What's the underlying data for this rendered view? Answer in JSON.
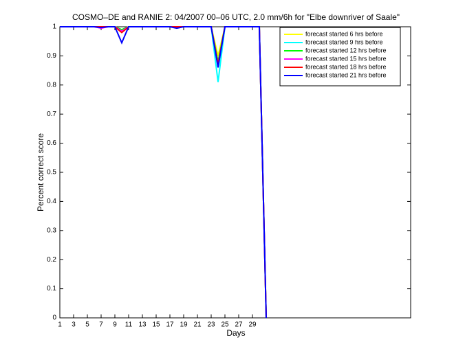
{
  "chart_data": {
    "type": "line",
    "title": "COSMO–DE and RANIE 2: 04/2007 00–06 UTC, 2.0 mm/6h for \"Elbe downriver of Saale\"",
    "x_label": "Days",
    "y_label": "Percent correct score",
    "x": [
      1,
      2,
      3,
      4,
      5,
      6,
      7,
      8,
      9,
      10,
      11,
      12,
      13,
      14,
      15,
      16,
      17,
      18,
      19,
      20,
      21,
      22,
      23,
      24,
      25,
      26,
      27,
      28,
      29,
      30,
      31
    ],
    "series": [
      {
        "name": "forecast started 6 hrs before",
        "color": "#ffff00",
        "values": [
          1,
          1,
          1,
          1,
          1,
          1,
          1,
          1,
          1,
          0.99,
          1,
          1,
          1,
          1,
          1,
          1,
          1,
          1,
          1,
          1,
          1,
          1,
          1,
          0.9,
          1,
          1,
          1,
          1,
          1,
          1,
          0
        ]
      },
      {
        "name": "forecast started 9 hrs before",
        "color": "#00ffff",
        "values": [
          1,
          1,
          1,
          1,
          1,
          1,
          1,
          1,
          1,
          0.99,
          1,
          1,
          1,
          1,
          1,
          1,
          1,
          1,
          1,
          1,
          1,
          1,
          1,
          0.81,
          1,
          1,
          1,
          1,
          1,
          1,
          0
        ]
      },
      {
        "name": "forecast started 12 hrs before",
        "color": "#00ff00",
        "values": [
          1,
          1,
          1,
          1,
          1,
          1,
          1,
          1,
          1,
          0.99,
          1,
          1,
          1,
          1,
          1,
          1,
          1,
          1,
          1,
          1,
          1,
          1,
          1,
          0.88,
          1,
          1,
          1,
          1,
          1,
          1,
          0
        ]
      },
      {
        "name": "forecast started 15 hrs before",
        "color": "#ff00ff",
        "values": [
          1,
          1,
          1,
          1,
          1,
          1,
          0.995,
          1,
          1,
          0.985,
          1,
          1,
          1,
          1,
          1,
          1,
          1,
          1,
          1,
          1,
          1,
          1,
          1,
          0.87,
          1,
          1,
          1,
          1,
          1,
          1,
          0
        ]
      },
      {
        "name": "forecast started 18 hrs before",
        "color": "#ff0000",
        "values": [
          1,
          1,
          1,
          1,
          1,
          1,
          1,
          1,
          1,
          0.98,
          1,
          1,
          1,
          1,
          1,
          1,
          1,
          1,
          1,
          1,
          1,
          1,
          1,
          0.87,
          1,
          1,
          1,
          1,
          1,
          1,
          0
        ]
      },
      {
        "name": "forecast started 21 hrs before",
        "color": "#0000ff",
        "values": [
          1,
          1,
          1,
          1,
          1,
          1,
          0.997,
          1,
          1,
          0.945,
          1,
          1,
          1,
          1,
          1,
          1,
          1,
          0.995,
          1,
          1,
          1,
          1,
          1,
          0.86,
          1,
          1,
          1,
          1,
          1,
          1,
          0
        ]
      }
    ],
    "xlim": [
      1,
      52
    ],
    "ylim": [
      0,
      1
    ],
    "xticks": [
      1,
      3,
      5,
      7,
      9,
      11,
      13,
      15,
      17,
      19,
      21,
      23,
      25,
      27,
      29
    ],
    "yticks": [
      0,
      0.1,
      0.2,
      0.3,
      0.4,
      0.5,
      0.6,
      0.7,
      0.8,
      0.9,
      1
    ],
    "legend": "upper right"
  }
}
